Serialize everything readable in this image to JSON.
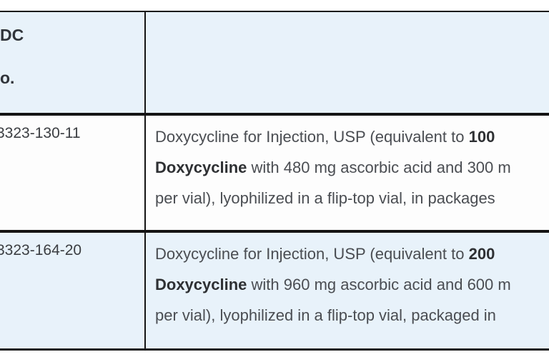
{
  "theme": {
    "header_bg": "#e8f2fa",
    "row_bg": "#fdfdfd",
    "row_alt_bg": "#e8f2fa",
    "border_color": "#141414",
    "body_text": "#4a4d52",
    "bold_text": "#2e3033"
  },
  "table": {
    "header": {
      "col1_lines": [
        "DC",
        "o."
      ],
      "col2_label": ""
    },
    "rows": [
      {
        "ndc": "3323-130-11",
        "lines": [
          [
            {
              "text": "Doxycycline for Injection, USP (equivalent to ",
              "bold": false
            },
            {
              "text": "100",
              "bold": true
            }
          ],
          [
            {
              "text": "Doxycycline",
              "bold": true
            },
            {
              "text": " with 480 mg ascorbic acid and 300 m",
              "bold": false
            }
          ],
          [
            {
              "text": "per vial), lyophilized in a flip-top vial, in packages ",
              "bold": false
            }
          ]
        ]
      },
      {
        "ndc": "3323-164-20",
        "lines": [
          [
            {
              "text": "Doxycycline for Injection, USP (equivalent to ",
              "bold": false
            },
            {
              "text": "200",
              "bold": true
            }
          ],
          [
            {
              "text": "Doxycycline",
              "bold": true
            },
            {
              "text": " with 960 mg ascorbic acid and 600 m",
              "bold": false
            }
          ],
          [
            {
              "text": "per vial), lyophilized in a flip-top vial, packaged in ",
              "bold": false
            }
          ]
        ]
      }
    ]
  }
}
